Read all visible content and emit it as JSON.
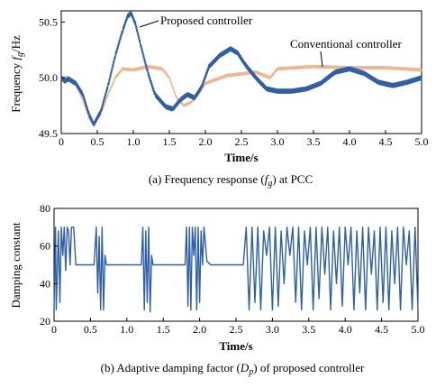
{
  "chart_data": [
    {
      "type": "line",
      "caption": "(a) Frequency response",
      "caption_sym": "f",
      "caption_sub": "g",
      "caption_tail": ") at PCC",
      "ylabel": "Frequency",
      "ylabel_sym": "f",
      "ylabel_sub": "g",
      "ylabel_unit": "/Hz",
      "xlabel": "Time/s",
      "xlim": [
        0,
        5.0
      ],
      "ylim": [
        49.5,
        50.6
      ],
      "xticks": [
        "0",
        "0.5",
        "1.0",
        "1.5",
        "2.0",
        "2.5",
        "3.0",
        "3.5",
        "4.0",
        "4.5",
        "5.0"
      ],
      "yticks": [
        "49.5",
        "50.0",
        "50.5"
      ],
      "series": [
        {
          "name": "Proposed controller",
          "color": "#2e5fa8",
          "ripple": 0.018,
          "x": [
            0,
            0.05,
            0.1,
            0.2,
            0.3,
            0.38,
            0.45,
            0.55,
            0.65,
            0.75,
            0.85,
            0.92,
            0.97,
            1.03,
            1.1,
            1.2,
            1.3,
            1.45,
            1.55,
            1.65,
            1.75,
            1.85,
            1.95,
            2.05,
            2.2,
            2.35,
            2.45,
            2.55,
            2.7,
            2.85,
            3.0,
            3.2,
            3.4,
            3.6,
            3.8,
            4.0,
            4.2,
            4.4,
            4.6,
            4.8,
            5.0
          ],
          "y": [
            50.0,
            49.97,
            49.99,
            49.95,
            49.85,
            49.68,
            49.58,
            49.7,
            49.93,
            50.2,
            50.42,
            50.55,
            50.58,
            50.48,
            50.3,
            50.05,
            49.85,
            49.74,
            49.72,
            49.8,
            49.85,
            49.82,
            49.92,
            50.1,
            50.2,
            50.26,
            50.22,
            50.12,
            50.0,
            49.9,
            49.88,
            49.88,
            49.9,
            49.95,
            50.05,
            50.08,
            50.04,
            49.96,
            49.93,
            49.96,
            50.0
          ]
        },
        {
          "name": "Conventional controller",
          "color": "#f0b48e",
          "ripple": 0.012,
          "x": [
            0,
            0.1,
            0.2,
            0.3,
            0.38,
            0.45,
            0.55,
            0.65,
            0.75,
            0.85,
            1.0,
            1.2,
            1.4,
            1.5,
            1.6,
            1.7,
            1.8,
            1.9,
            2.0,
            2.3,
            2.7,
            2.9,
            3.0,
            3.5,
            4.0,
            4.5,
            5.0
          ],
          "y": [
            50.0,
            50.0,
            49.95,
            49.8,
            49.65,
            49.58,
            49.68,
            49.85,
            50.0,
            50.08,
            50.07,
            50.1,
            50.08,
            50.0,
            49.82,
            49.75,
            49.78,
            49.85,
            49.95,
            50.02,
            50.05,
            50.0,
            50.08,
            50.1,
            50.09,
            50.09,
            50.07
          ]
        }
      ]
    },
    {
      "type": "line",
      "caption": "(b) Adaptive damping factor (",
      "caption_sym": "D",
      "caption_sub": "p",
      "caption_tail": ") of proposed controller",
      "ylabel": "Damping constant",
      "xlabel": "Time/s",
      "xlim": [
        0,
        5.0
      ],
      "ylim": [
        20,
        80
      ],
      "xticks": [
        "0",
        "0.5",
        "1.0",
        "1.5",
        "2.0",
        "2.5",
        "3.0",
        "3.5",
        "4.0",
        "4.5",
        "5.0"
      ],
      "yticks": [
        "20",
        "40",
        "60",
        "80"
      ],
      "series": [
        {
          "color": "#2e5fa8",
          "x": [
            0,
            0.02,
            0.03,
            0.06,
            0.08,
            0.1,
            0.12,
            0.14,
            0.16,
            0.18,
            0.2,
            0.22,
            0.24,
            0.27,
            0.3,
            0.45,
            0.55,
            0.58,
            0.6,
            0.62,
            0.64,
            0.66,
            0.68,
            0.7,
            0.72,
            0.75,
            0.78,
            1.2,
            1.22,
            1.24,
            1.26,
            1.28,
            1.3,
            1.32,
            1.34,
            1.36,
            1.38,
            1.8,
            1.82,
            1.84,
            1.86,
            1.88,
            1.9,
            1.92,
            1.94,
            1.96,
            1.98,
            2.0,
            2.02,
            2.04,
            2.06,
            2.1,
            2.15,
            2.6,
            2.64,
            2.68,
            2.72,
            2.76,
            2.8,
            2.84,
            2.88,
            2.92,
            2.96,
            3.0,
            3.04,
            3.08,
            3.12,
            3.16,
            3.2,
            3.24,
            3.28,
            3.32,
            3.36,
            3.4,
            3.44,
            3.48,
            3.52,
            3.56,
            3.6,
            3.64,
            3.68,
            3.72,
            3.76,
            3.8,
            3.84,
            3.88,
            3.92,
            3.96,
            4.0,
            4.04,
            4.08,
            4.12,
            4.16,
            4.2,
            4.24,
            4.28,
            4.32,
            4.36,
            4.4,
            4.44,
            4.48,
            4.52,
            4.56,
            4.6,
            4.64,
            4.68,
            4.72,
            4.76,
            4.8,
            4.84,
            4.88,
            4.92,
            4.96,
            5.0
          ],
          "y": [
            26,
            70,
            26,
            68,
            30,
            70,
            55,
            70,
            47,
            70,
            68,
            50,
            70,
            70,
            50,
            50,
            50,
            70,
            35,
            65,
            26,
            70,
            26,
            55,
            50,
            50,
            50,
            50,
            70,
            26,
            68,
            30,
            70,
            25,
            55,
            50,
            50,
            50,
            70,
            28,
            70,
            26,
            70,
            55,
            70,
            26,
            70,
            30,
            68,
            50,
            70,
            52,
            50,
            50,
            70,
            26,
            70,
            30,
            70,
            26,
            68,
            55,
            70,
            26,
            70,
            28,
            68,
            40,
            70,
            55,
            70,
            30,
            70,
            26,
            68,
            50,
            70,
            26,
            70,
            32,
            70,
            45,
            70,
            26,
            68,
            40,
            70,
            28,
            70,
            50,
            70,
            26,
            68,
            35,
            70,
            26,
            70,
            45,
            68,
            26,
            70,
            30,
            70,
            26,
            68,
            40,
            70,
            26,
            70,
            50,
            68,
            26,
            70,
            26
          ]
        }
      ]
    }
  ]
}
